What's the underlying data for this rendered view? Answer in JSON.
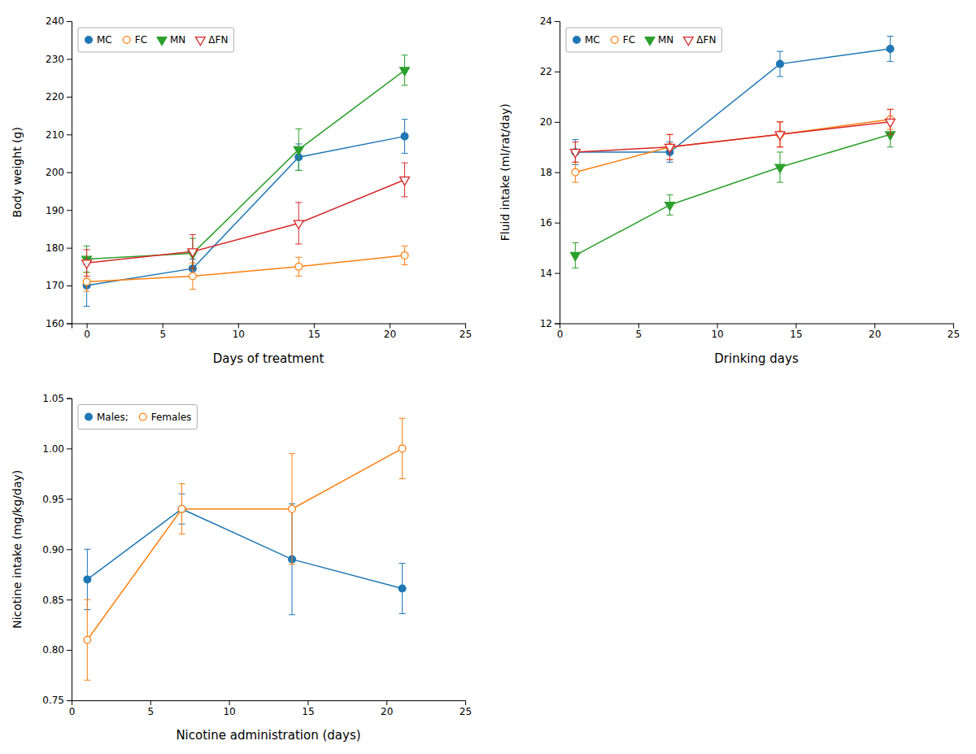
{
  "chart_data": [
    {
      "type": "line",
      "xlabel": "Days of treatment",
      "ylabel": "Body weight (g)",
      "xlim": [
        -1,
        25
      ],
      "ylim": [
        160,
        240
      ],
      "xticks": [
        0,
        5,
        10,
        15,
        20,
        25
      ],
      "yticks": [
        160,
        170,
        180,
        190,
        200,
        210,
        220,
        230,
        240
      ],
      "grid": false,
      "legend": "upper left",
      "x": [
        0,
        7,
        14,
        21
      ],
      "series": [
        {
          "name": "MC",
          "marker": "circle",
          "values": [
            170.0,
            174.5,
            204.0,
            209.5
          ],
          "errors": [
            5.5,
            2.5,
            3.5,
            4.5
          ]
        },
        {
          "name": "FC",
          "marker": "circle-open",
          "values": [
            171.0,
            172.5,
            175.0,
            178.0
          ],
          "errors": [
            2.5,
            3.5,
            2.5,
            2.5
          ]
        },
        {
          "name": "MN",
          "marker": "triangle-down",
          "values": [
            177.0,
            178.5,
            206.0,
            227.0
          ],
          "errors": [
            3.5,
            4.0,
            5.5,
            4.0
          ]
        },
        {
          "name": "ΔFN",
          "marker": "triangle-down-open",
          "values": [
            176.0,
            179.0,
            186.5,
            198.0
          ],
          "errors": [
            3.5,
            4.5,
            5.5,
            4.5
          ]
        }
      ]
    },
    {
      "type": "line",
      "xlabel": "Drinking days",
      "ylabel": "Fluid intake (ml/rat/day)",
      "xlim": [
        0,
        25
      ],
      "ylim": [
        12,
        24
      ],
      "xticks": [
        0,
        5,
        10,
        15,
        20,
        25
      ],
      "yticks": [
        12,
        14,
        16,
        18,
        20,
        22,
        24
      ],
      "grid": false,
      "legend": "upper left",
      "x": [
        1,
        7,
        14,
        21
      ],
      "series": [
        {
          "name": "MC",
          "marker": "circle",
          "values": [
            18.8,
            18.8,
            22.3,
            22.9
          ],
          "errors": [
            0.5,
            0.4,
            0.5,
            0.5
          ]
        },
        {
          "name": "FC",
          "marker": "circle-open",
          "values": [
            18.0,
            19.0,
            19.5,
            20.1
          ],
          "errors": [
            0.4,
            0.5,
            0.5,
            0.4
          ]
        },
        {
          "name": "MN",
          "marker": "triangle-down",
          "values": [
            14.7,
            16.7,
            18.2,
            19.5
          ],
          "errors": [
            0.5,
            0.4,
            0.6,
            0.5
          ]
        },
        {
          "name": "ΔFN",
          "marker": "triangle-down-open",
          "values": [
            18.8,
            19.0,
            19.5,
            20.0
          ],
          "errors": [
            0.4,
            0.5,
            0.5,
            0.5
          ]
        }
      ]
    },
    {
      "type": "line",
      "xlabel": "Nicotine administration (days)",
      "ylabel": "Nicotine intake (mg/kg/day)",
      "xlim": [
        0,
        25
      ],
      "ylim": [
        0.75,
        1.05
      ],
      "xticks": [
        0,
        5,
        10,
        15,
        20,
        25
      ],
      "yticks": [
        0.75,
        {
          "value": 0.8,
          "label": "0.80"
        },
        0.85,
        {
          "value": 0.9,
          "label": "0.90"
        },
        0.95,
        {
          "value": 1.0,
          "label": "1.00"
        },
        1.05
      ],
      "grid": false,
      "legend": "upper left",
      "x": [
        1,
        7,
        14,
        21
      ],
      "series": [
        {
          "name": "Males;",
          "marker": "circle",
          "values": [
            0.87,
            0.94,
            0.89,
            0.861
          ],
          "errors": [
            0.03,
            0.015,
            0.055,
            0.025
          ]
        },
        {
          "name": "Females",
          "marker": "circle-open",
          "values": [
            0.81,
            0.94,
            0.94,
            1.0
          ],
          "errors": [
            0.04,
            0.025,
            0.055,
            0.03
          ]
        }
      ]
    }
  ]
}
